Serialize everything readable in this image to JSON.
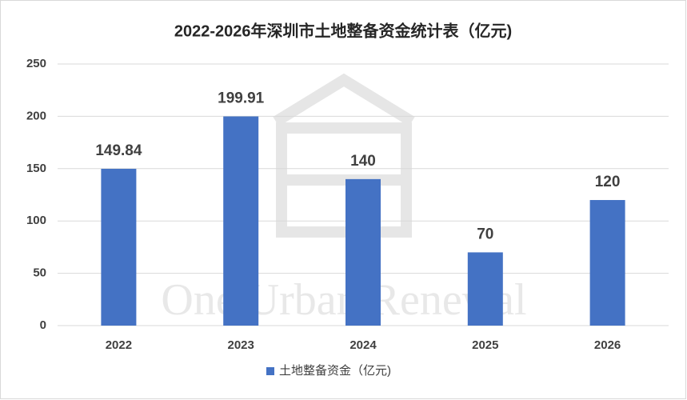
{
  "chart_data": {
    "type": "bar",
    "title": "2022-2026年深圳市土地整备资金统计表（亿元)",
    "categories": [
      "2022",
      "2023",
      "2024",
      "2025",
      "2026"
    ],
    "series": [
      {
        "name": "土地整备资金（亿元)",
        "color": "#4472c4",
        "values": [
          149.84,
          199.91,
          140,
          70,
          120
        ]
      }
    ],
    "ylim": [
      0,
      250
    ],
    "yticks": [
      0,
      50,
      100,
      150,
      200,
      250
    ],
    "grid": true,
    "legend": "bottom",
    "watermark": "One Urban Renewal"
  }
}
